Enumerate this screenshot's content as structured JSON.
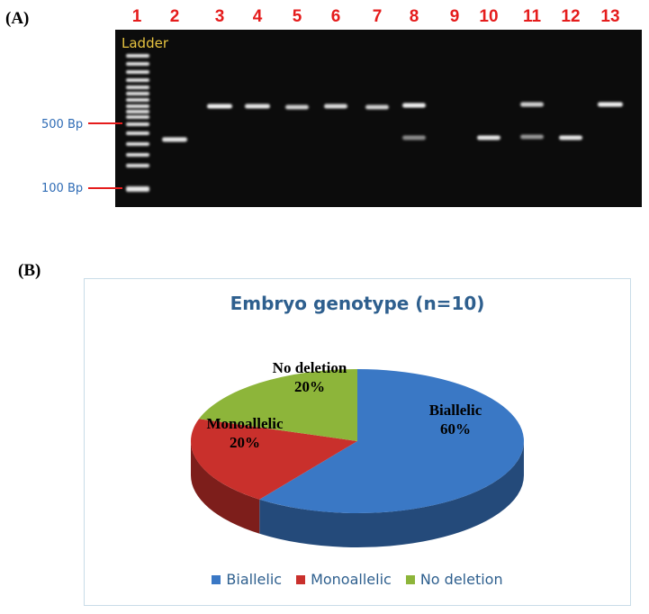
{
  "panel_a": {
    "label": "(A)",
    "lane_numbers": [
      "1",
      "2",
      "3",
      "4",
      "5",
      "6",
      "7",
      "8",
      "9",
      "10",
      "11",
      "12",
      "13"
    ],
    "ladder_label": "Ladder",
    "markers": [
      "500 Bp",
      "100 Bp"
    ],
    "colors": {
      "lane_numbers": "#e51c1c",
      "ladder_label": "#e8c440",
      "markers": "#2e6bb5",
      "gel": "#0c0c0c"
    }
  },
  "panel_b": {
    "label": "(B)",
    "chart_data": {
      "type": "pie",
      "title": "Embryo genotype (n=10)",
      "slices": [
        {
          "name": "Biallelic",
          "value": 60,
          "label": "60%",
          "color": "#3a78c5"
        },
        {
          "name": "Monoallelic",
          "value": 20,
          "label": "20%",
          "color": "#c9302c"
        },
        {
          "name": "No deletion",
          "value": 20,
          "label": "20%",
          "color": "#8db53a"
        }
      ],
      "legend": [
        "Biallelic",
        "Monoallelic",
        "No deletion"
      ],
      "legend_position": "bottom",
      "style": "3d"
    }
  }
}
